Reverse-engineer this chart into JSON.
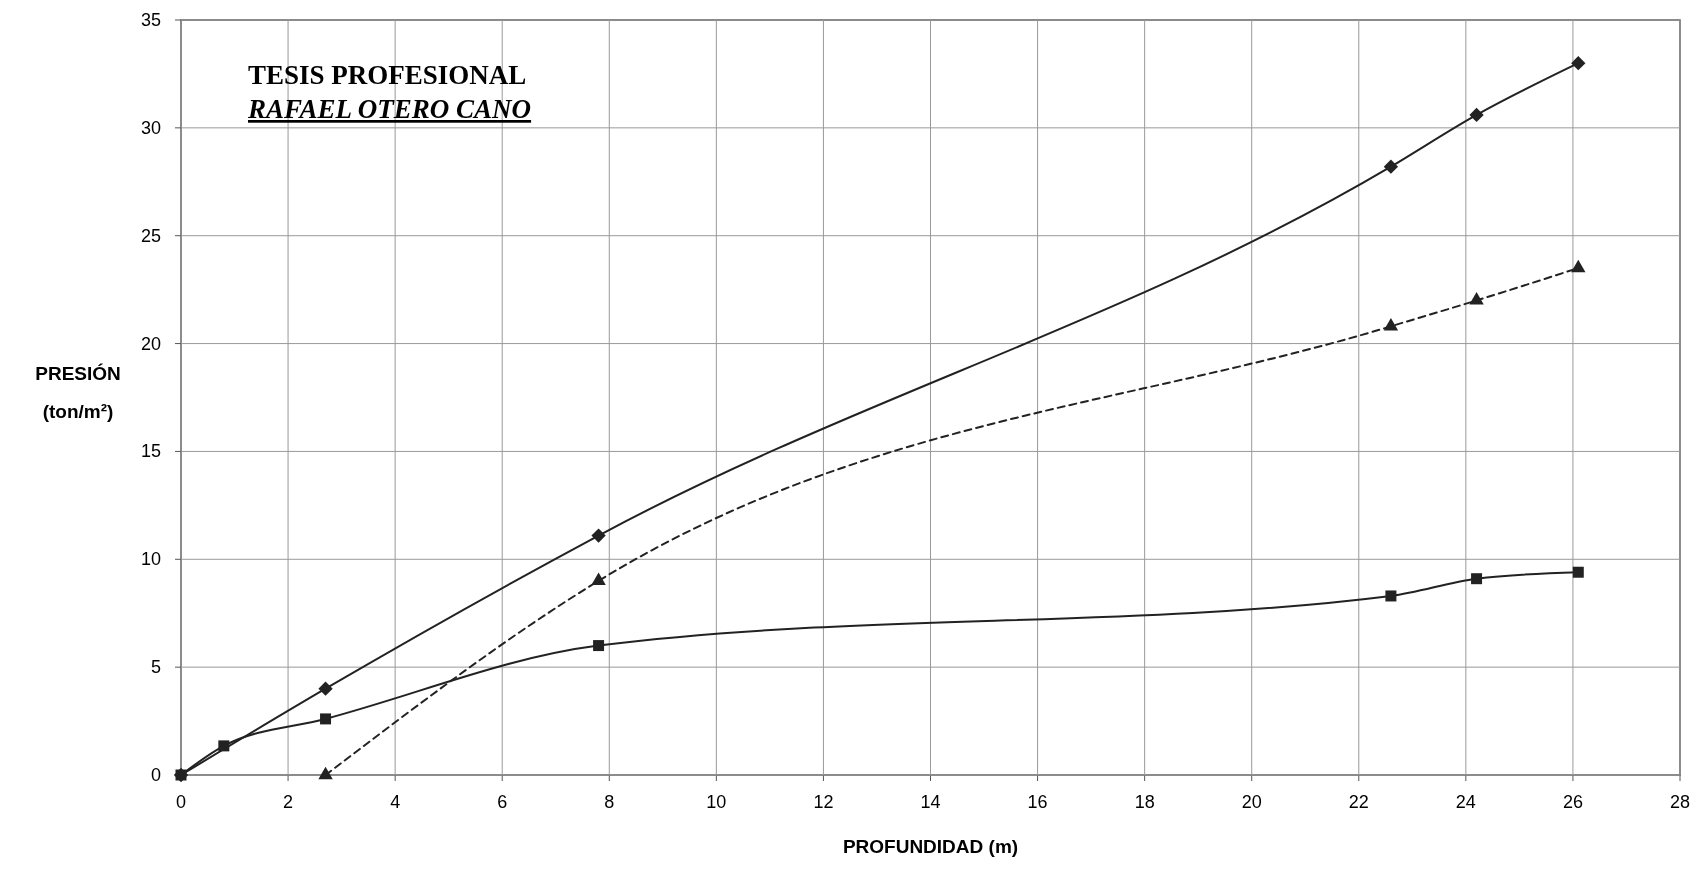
{
  "chart_data": {
    "type": "line",
    "xlabel": "PROFUNDIDAD (m)",
    "ylabel": "PRESIÓN (ton/m²)",
    "annotations": [
      "TESIS PROFESIONAL",
      "RAFAEL OTERO CANO"
    ],
    "xlim": [
      0,
      28
    ],
    "xticks": [
      0,
      2,
      4,
      6,
      8,
      10,
      12,
      14,
      16,
      18,
      20,
      22,
      24,
      26,
      28
    ],
    "ylim": [
      0,
      35
    ],
    "yticks": [
      0,
      5,
      10,
      15,
      20,
      25,
      30,
      35
    ],
    "grid": true,
    "series": [
      {
        "color": "#222222",
        "marker": "diamond",
        "line_style": "solid",
        "x": [
          0,
          0.8,
          2.7,
          7.8,
          22.6,
          24.2,
          26.1
        ],
        "values": [
          0,
          null,
          4,
          11.1,
          28.2,
          30.6,
          33
        ]
      },
      {
        "color": "#222222",
        "marker": "square",
        "line_style": "solid",
        "x": [
          0,
          0.8,
          2.7,
          7.8,
          22.6,
          24.2,
          26.1
        ],
        "values": [
          0,
          1.35,
          2.6,
          6,
          8.3,
          9.1,
          9.4
        ]
      },
      {
        "color": "#222222",
        "marker": "triangle",
        "line_style": "dashed",
        "x": [
          2.7,
          7.8,
          22.6,
          24.2,
          26.1
        ],
        "values": [
          0,
          9,
          20.8,
          22,
          23.5
        ]
      }
    ]
  }
}
